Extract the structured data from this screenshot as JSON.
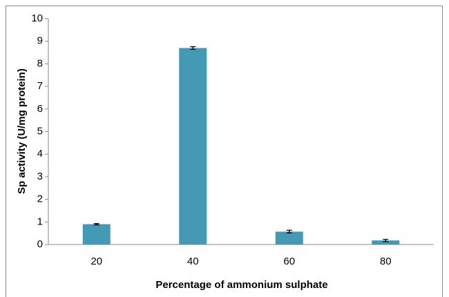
{
  "chart_data": {
    "type": "bar",
    "x_label": "Percentage of ammonium sulphate",
    "y_label": "Sp activity (U/mg protein)",
    "categories": [
      "20",
      "40",
      "60",
      "80"
    ],
    "values": [
      0.9,
      8.7,
      0.57,
      0.18
    ],
    "errors": [
      0.03,
      0.06,
      0.06,
      0.05
    ],
    "color": "#4499b4",
    "ylim": [
      0,
      10
    ],
    "yticks": [
      0,
      1,
      2,
      3,
      4,
      5,
      6,
      7,
      8,
      9,
      10
    ],
    "grid": false
  }
}
